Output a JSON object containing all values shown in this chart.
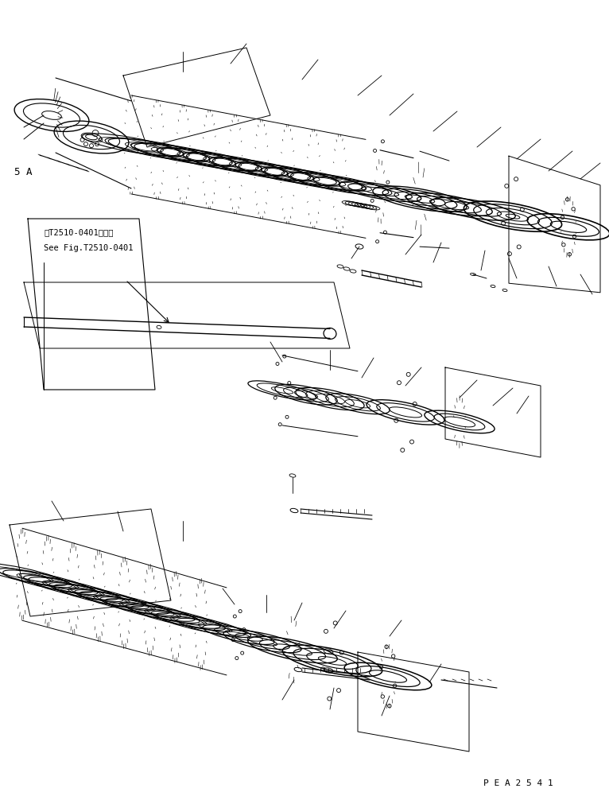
{
  "background_color": "#ffffff",
  "line_color": "#000000",
  "text_color": "#000000",
  "label_5a": "5 A",
  "label_ref1": "第T2510-0401図参照",
  "label_ref2": "See Fig.T2510-0401",
  "label_pea": "P E A 2 5 4 1",
  "figsize": [
    7.66,
    10.11
  ],
  "dpi": 100
}
